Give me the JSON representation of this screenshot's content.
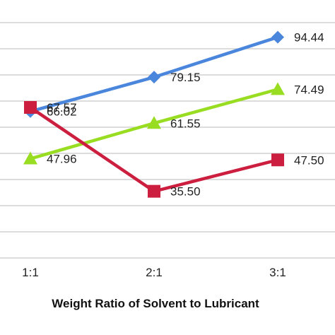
{
  "chart_data": {
    "type": "line",
    "categories": [
      "1:1",
      "2:1",
      "3:1"
    ],
    "xlabel": "Weight Ratio of Solvent to Lubricant",
    "ylim": [
      10,
      110
    ],
    "grid": true,
    "series": [
      {
        "values": [
          66.02,
          79.15,
          94.44
        ],
        "labels": [
          "66.02",
          "79.15",
          "94.44"
        ],
        "color": "#4a86dc",
        "marker": "diamond"
      },
      {
        "values": [
          47.96,
          61.55,
          74.49
        ],
        "labels": [
          "47.96",
          "61.55",
          "74.49"
        ],
        "color": "#99dd22",
        "marker": "triangle"
      },
      {
        "values": [
          67.57,
          35.5,
          47.5
        ],
        "labels": [
          "67.57",
          "35.50",
          "47.50"
        ],
        "color": "#cc1f3f",
        "marker": "square"
      }
    ]
  }
}
